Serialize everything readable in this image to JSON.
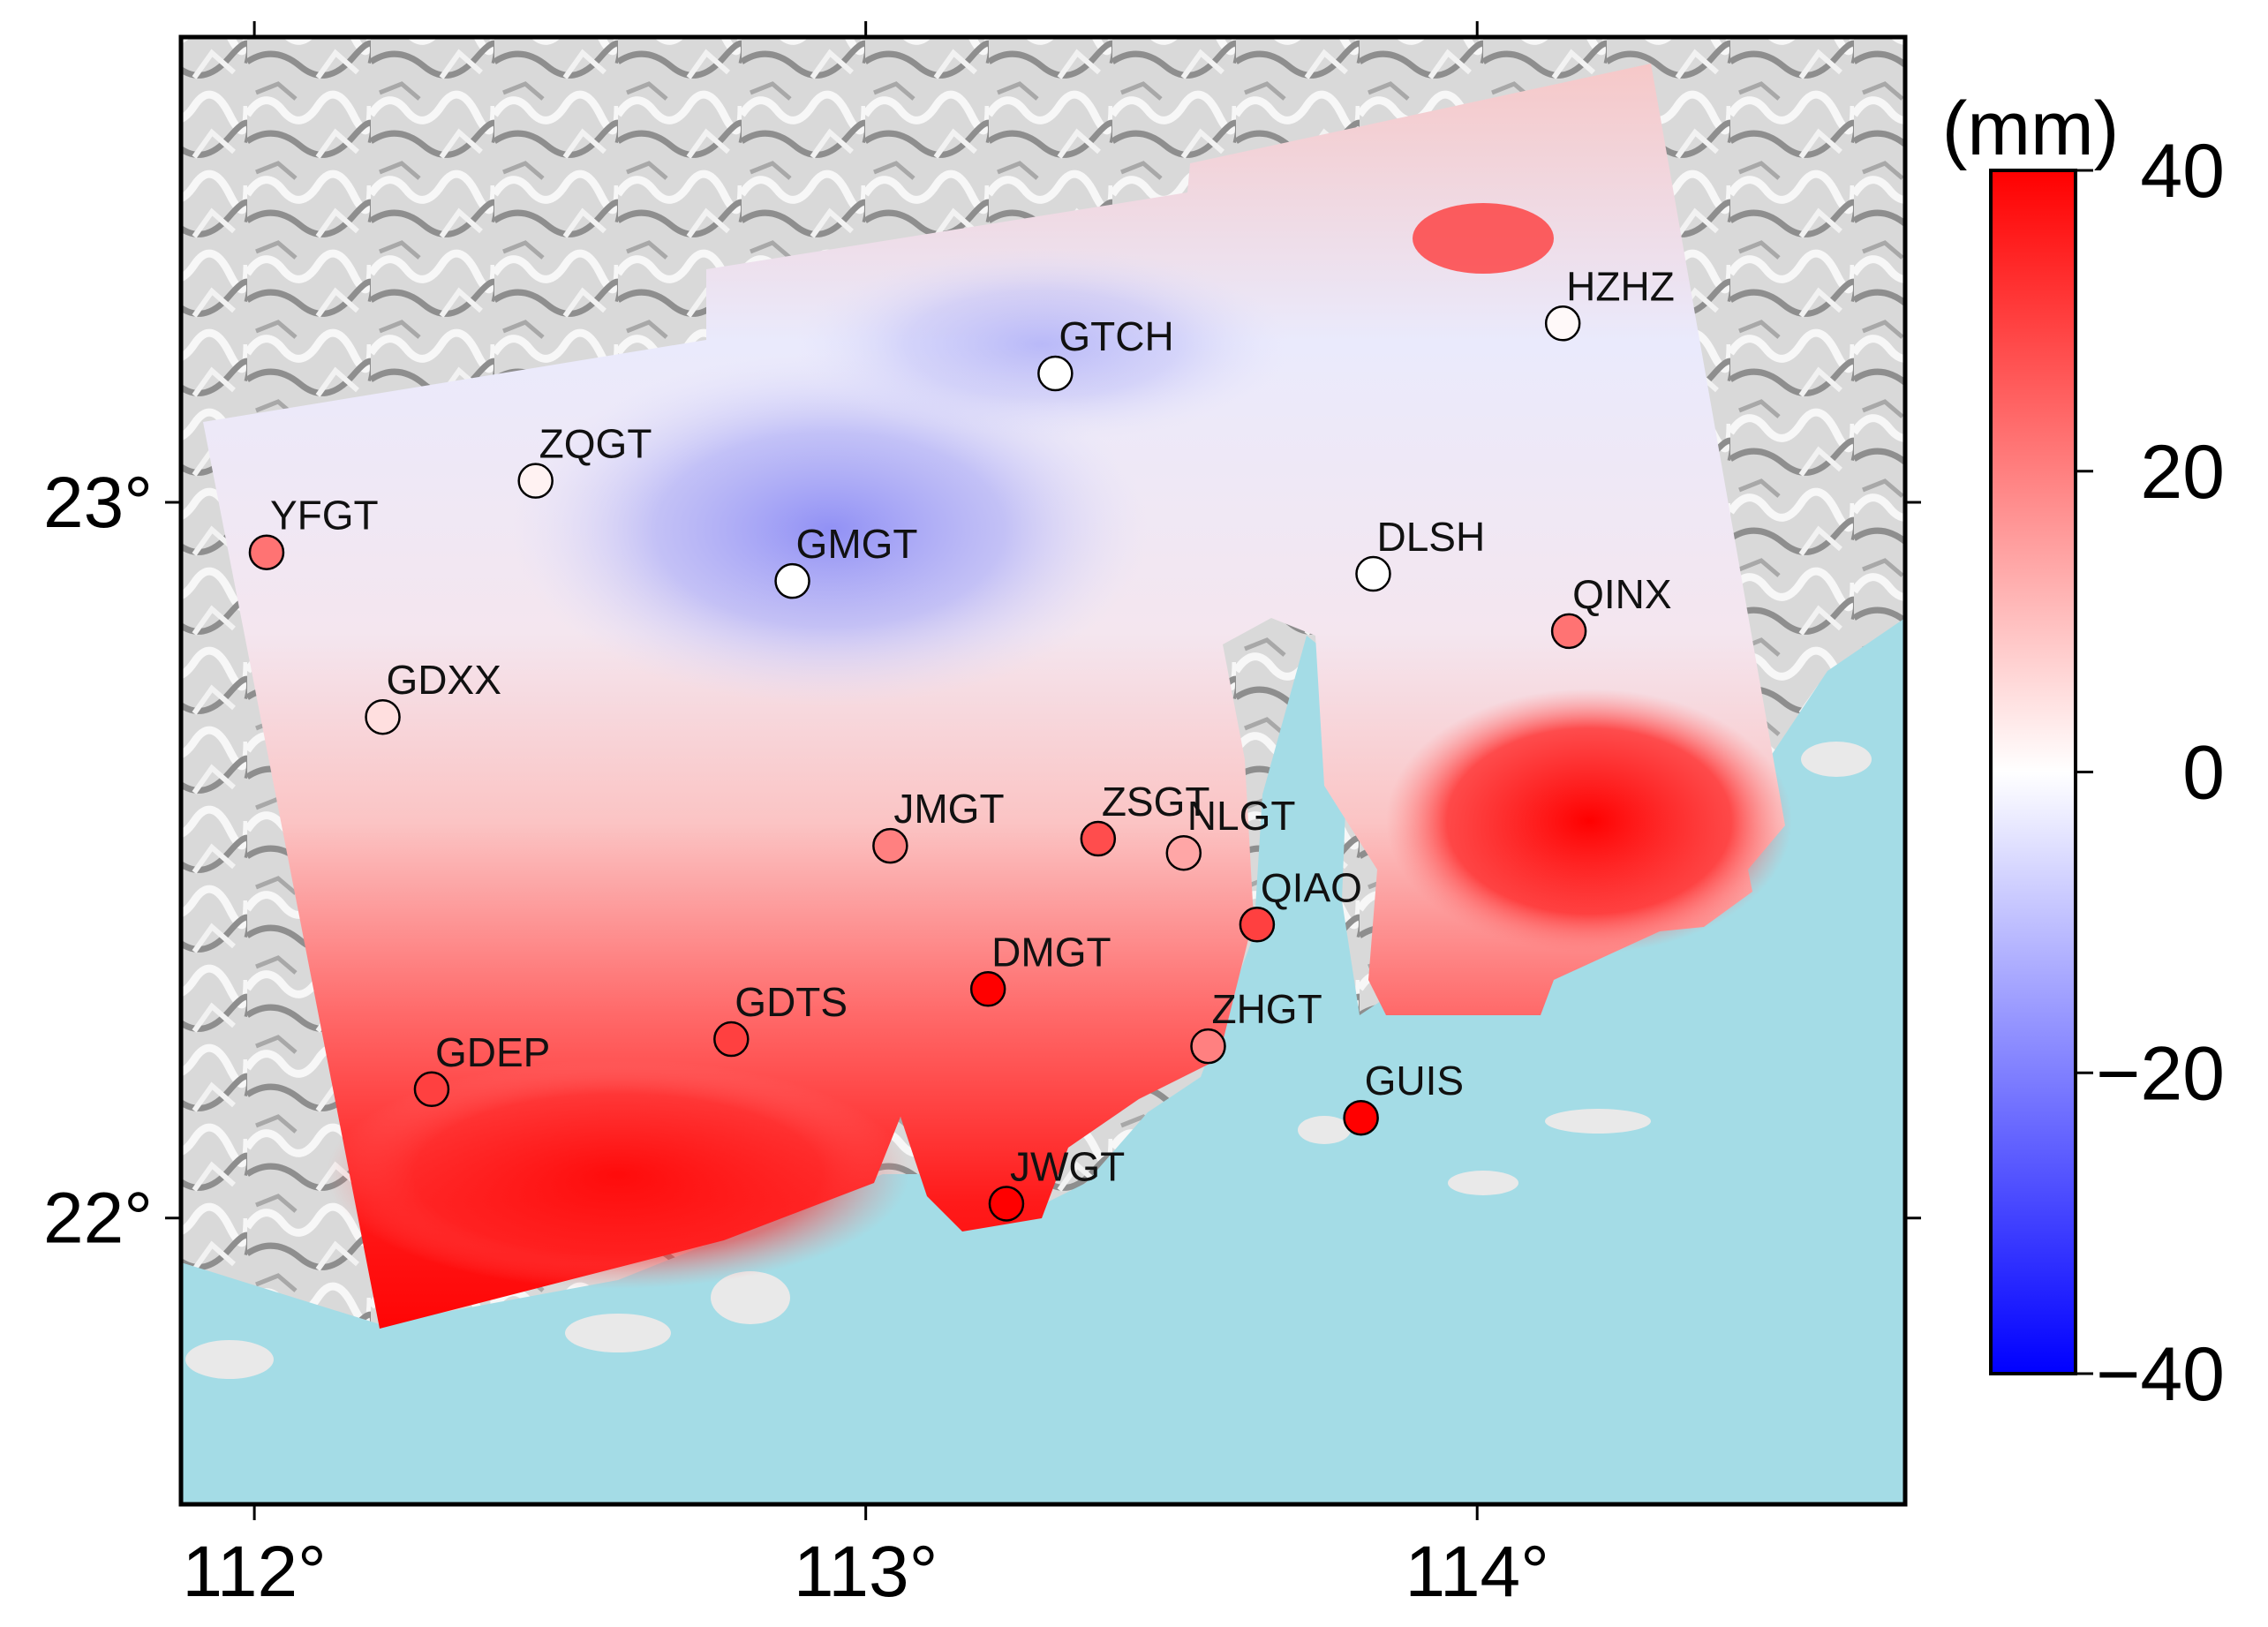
{
  "map": {
    "x_axis_ticks": [
      {
        "lon": 112,
        "label": "112°"
      },
      {
        "lon": 113,
        "label": "113°"
      },
      {
        "lon": 114,
        "label": "114°"
      }
    ],
    "y_axis_ticks": [
      {
        "lat": 23,
        "label": "23°"
      },
      {
        "lat": 22,
        "label": "22°"
      }
    ],
    "lon_range": [
      111.88,
      114.7
    ],
    "lat_range": [
      21.6,
      23.65
    ],
    "colors": {
      "sea": "#a4dce6",
      "land_relief": "#cfcfcf",
      "positive": "#ff0000",
      "zero": "#ffffff",
      "negative": "#0000ff"
    }
  },
  "colorbar": {
    "unit": "(mm)",
    "min": -40,
    "max": 40,
    "ticks": [
      {
        "value": 40,
        "label": "40"
      },
      {
        "value": 20,
        "label": "20"
      },
      {
        "value": 0,
        "label": "0"
      },
      {
        "value": -20,
        "label": "−20"
      },
      {
        "value": -40,
        "label": "−40"
      }
    ]
  },
  "stations": [
    {
      "name": "HZHZ",
      "lon": 114.14,
      "lat": 23.25,
      "value": 1
    },
    {
      "name": "GTCH",
      "lon": 113.31,
      "lat": 23.18,
      "value": 0
    },
    {
      "name": "ZQGT",
      "lon": 112.46,
      "lat": 23.03,
      "value": 2
    },
    {
      "name": "YFGT",
      "lon": 112.02,
      "lat": 22.93,
      "value": 22
    },
    {
      "name": "GMGT",
      "lon": 112.88,
      "lat": 22.89,
      "value": 0
    },
    {
      "name": "DLSH",
      "lon": 113.83,
      "lat": 22.9,
      "value": 0
    },
    {
      "name": "QINX",
      "lon": 114.15,
      "lat": 22.82,
      "value": 22
    },
    {
      "name": "GDXX",
      "lon": 112.21,
      "lat": 22.7,
      "value": 5
    },
    {
      "name": "JMGT",
      "lon": 113.04,
      "lat": 22.52,
      "value": 20
    },
    {
      "name": "ZSGT",
      "lon": 113.38,
      "lat": 22.53,
      "value": 28
    },
    {
      "name": "NLGT",
      "lon": 113.52,
      "lat": 22.51,
      "value": 14
    },
    {
      "name": "QIAO",
      "lon": 113.64,
      "lat": 22.41,
      "value": 30
    },
    {
      "name": "DMGT",
      "lon": 113.2,
      "lat": 22.32,
      "value": 40
    },
    {
      "name": "ZHGT",
      "lon": 113.56,
      "lat": 22.24,
      "value": 20
    },
    {
      "name": "GDTS",
      "lon": 112.78,
      "lat": 22.25,
      "value": 30
    },
    {
      "name": "GDEP",
      "lon": 112.29,
      "lat": 22.18,
      "value": 30
    },
    {
      "name": "GUIS",
      "lon": 113.81,
      "lat": 22.14,
      "value": 40
    },
    {
      "name": "JWGT",
      "lon": 113.23,
      "lat": 22.02,
      "value": 40
    }
  ]
}
